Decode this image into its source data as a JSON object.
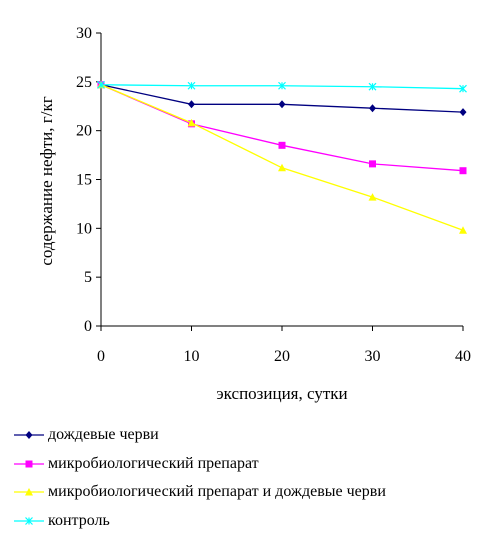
{
  "chart_data": {
    "type": "line",
    "title": "",
    "xlabel": "экспозиция, сутки",
    "ylabel": "содержание нефти, г/кг",
    "x": [
      0,
      10,
      20,
      30,
      40
    ],
    "xlim": [
      0,
      40
    ],
    "ylim": [
      0,
      30
    ],
    "xticks": [
      "0",
      "10",
      "20",
      "30",
      "40"
    ],
    "yticks": [
      "0",
      "5",
      "10",
      "15",
      "20",
      "25",
      "30"
    ],
    "grid": false,
    "legend_position": "bottom",
    "series": [
      {
        "name": "дождевые черви",
        "values": [
          24.7,
          22.7,
          22.7,
          22.3,
          21.9
        ],
        "color": "#000080",
        "marker": "diamond"
      },
      {
        "name": "микробиологический препарат",
        "values": [
          24.7,
          20.7,
          18.5,
          16.6,
          15.9
        ],
        "color": "#ff00ff",
        "marker": "square"
      },
      {
        "name": "микробиологический препарат и дождевые черви",
        "values": [
          24.7,
          20.8,
          16.2,
          13.2,
          9.8
        ],
        "color": "#ffff00",
        "marker": "triangle"
      },
      {
        "name": "контроль",
        "values": [
          24.7,
          24.6,
          24.6,
          24.5,
          24.3
        ],
        "color": "#00ffff",
        "marker": "star"
      }
    ]
  }
}
